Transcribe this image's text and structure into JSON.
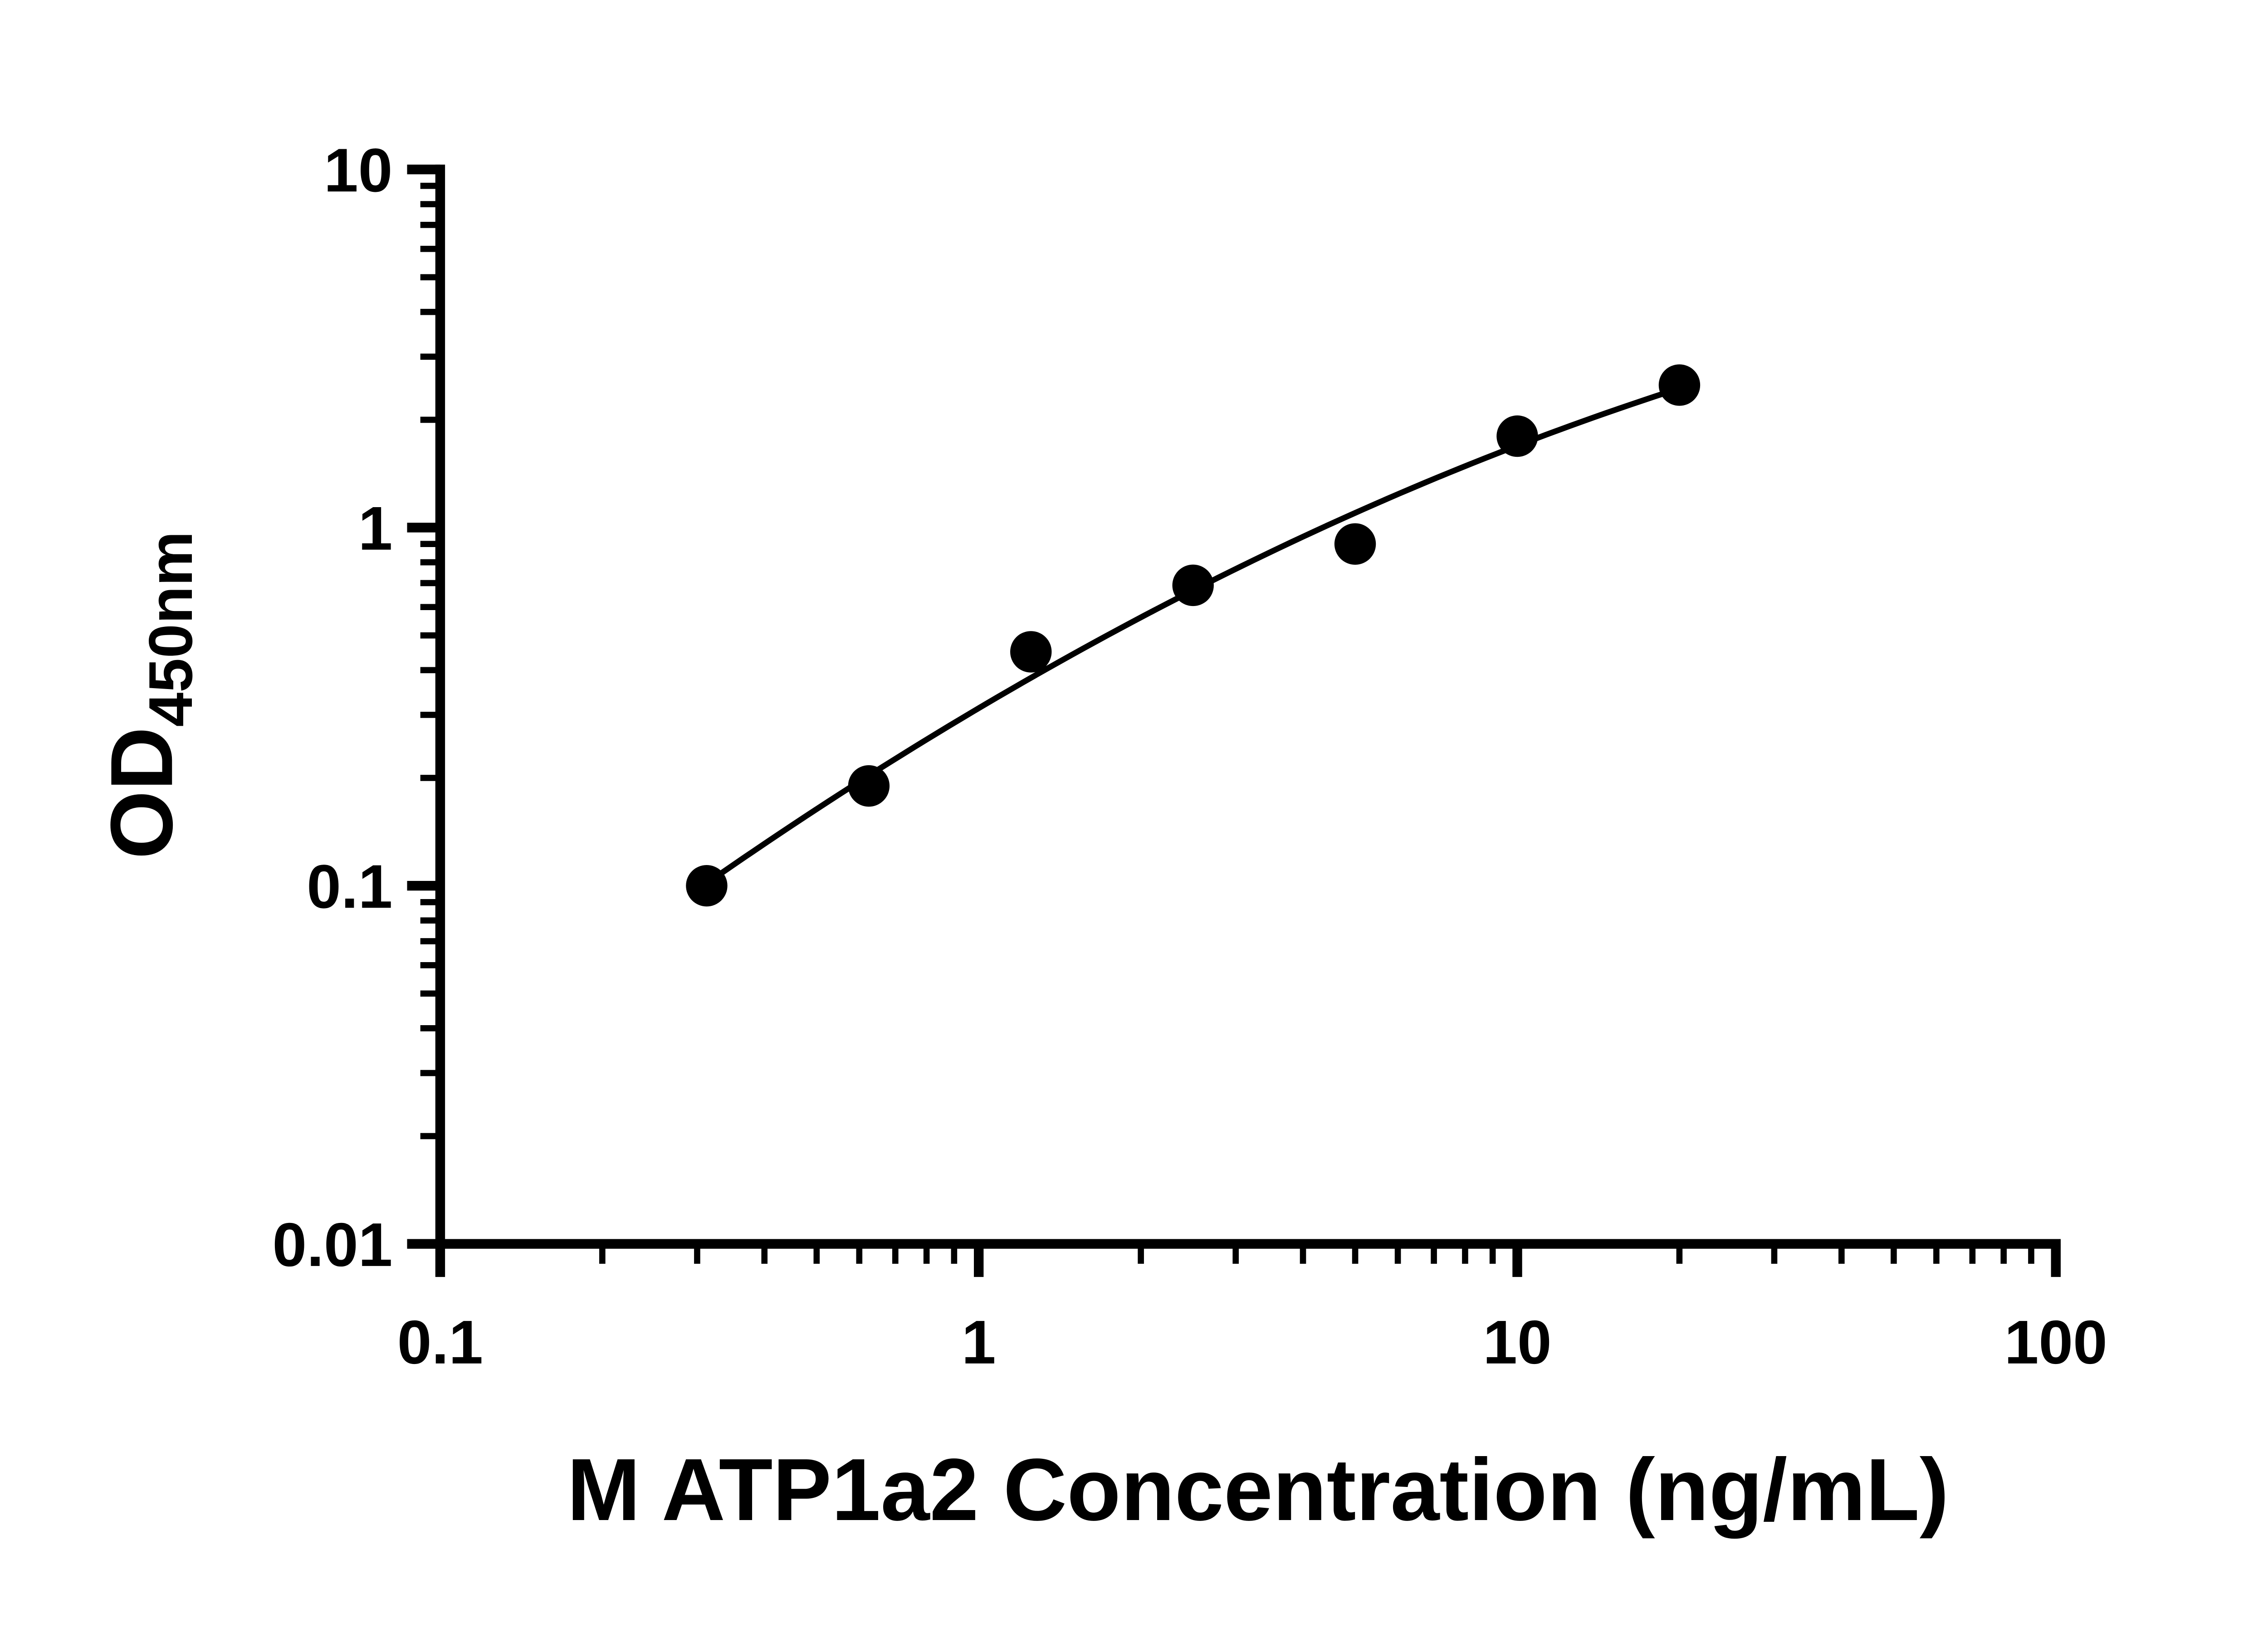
{
  "figure": {
    "background": "#ffffff",
    "axis_color": "#000000",
    "x_axis_title": "M ATP1a2 Concentration (ng/mL)",
    "y_axis_title": {
      "main": "OD",
      "sub": "450nm"
    }
  },
  "chart_data": {
    "type": "scatter",
    "title": "",
    "xlabel": "M ATP1a2 Concentration (ng/mL)",
    "ylabel": "OD450nm",
    "x_scale": "log",
    "y_scale": "log",
    "xlim": [
      0.1,
      100
    ],
    "ylim": [
      0.01,
      10
    ],
    "x_ticks": [
      0.1,
      1,
      10,
      100
    ],
    "x_tick_labels": [
      "0.1",
      "1",
      "10",
      "100"
    ],
    "y_ticks": [
      0.01,
      0.1,
      1,
      10
    ],
    "y_tick_labels": [
      "0.01",
      "0.1",
      "1",
      "10"
    ],
    "minor_ticks": true,
    "grid": false,
    "legend_position": "none",
    "series": [
      {
        "marker": "filled-circle",
        "marker_color": "#000000",
        "x": [
          0.3125,
          0.625,
          1.25,
          2.5,
          5,
          10,
          20
        ],
        "y": [
          0.1,
          0.19,
          0.45,
          0.69,
          0.9,
          1.8,
          2.5
        ]
      }
    ],
    "fit_curve": {
      "present": true,
      "style": "smooth log-log regression line",
      "color": "#000000"
    }
  }
}
